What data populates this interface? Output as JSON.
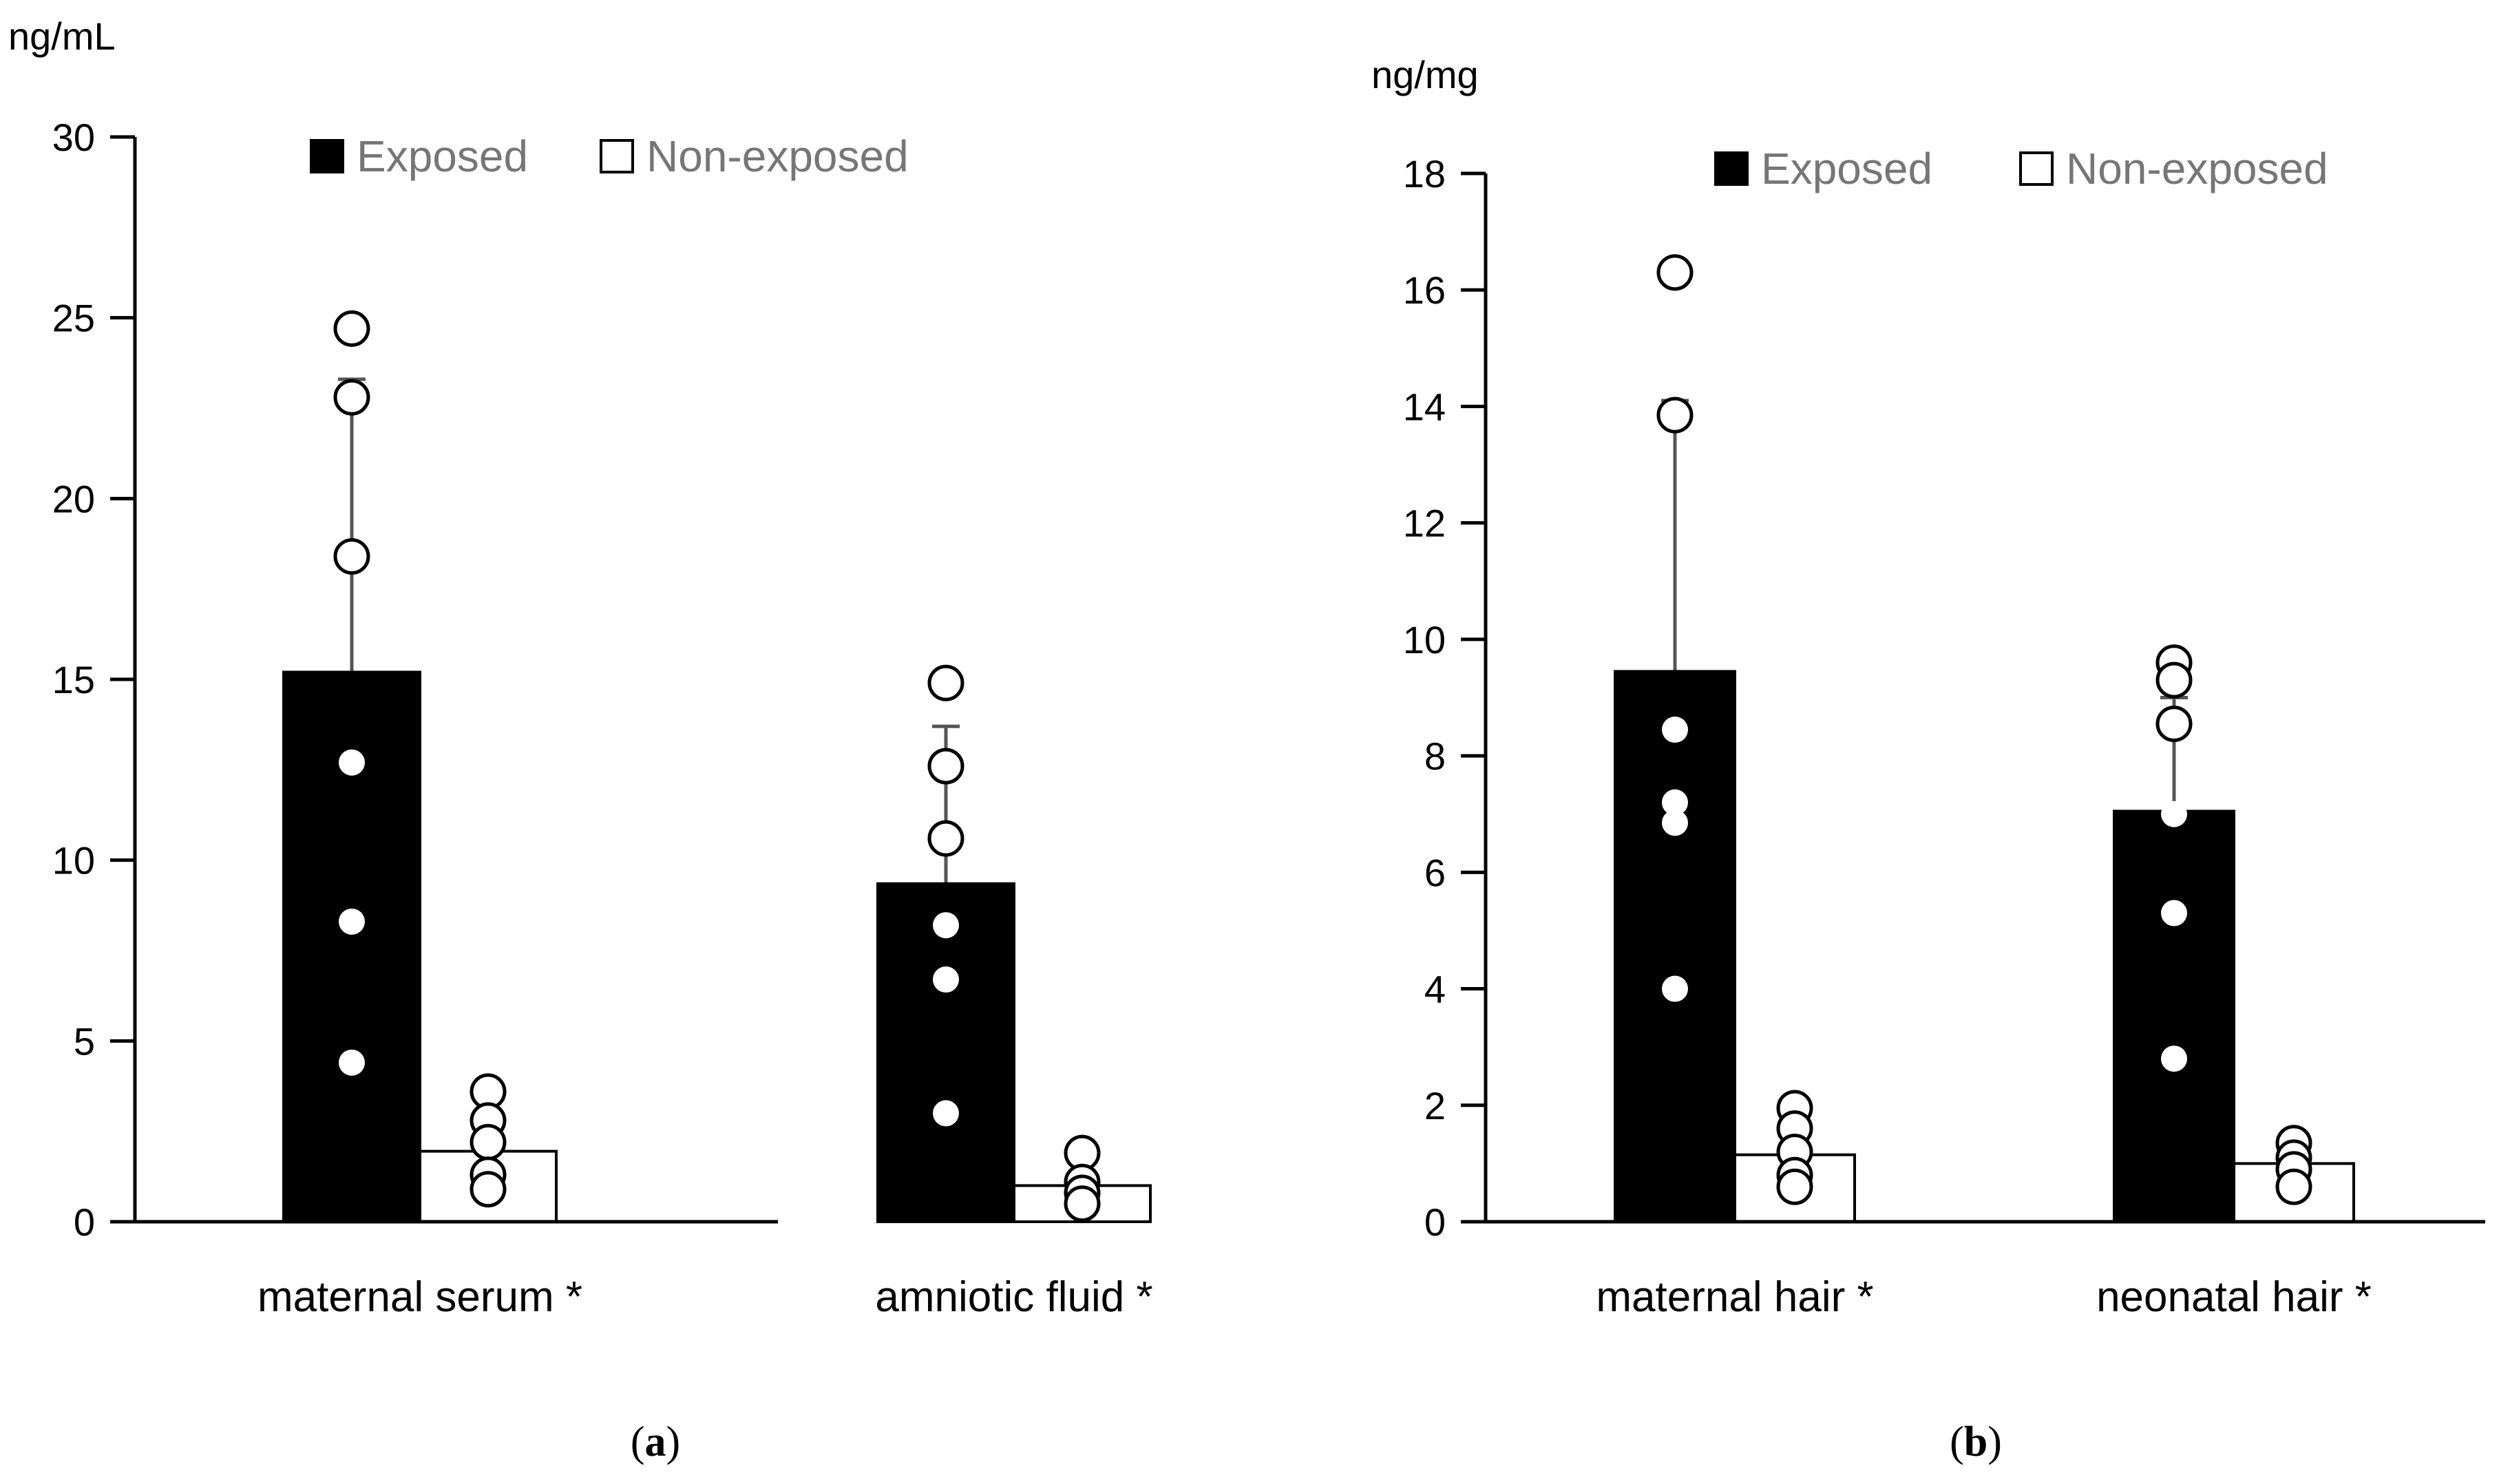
{
  "chart_data": [
    {
      "type": "bar",
      "panel_label": "(a)",
      "panel_letter": "a",
      "ylabel": "ng/mL",
      "ylim": [
        0,
        30
      ],
      "yticks": [
        0,
        5,
        10,
        15,
        20,
        25,
        30
      ],
      "categories": [
        "maternal serum *",
        "amniotic fluid *"
      ],
      "legend": {
        "position": "top-center",
        "entries": [
          "Exposed",
          "Non-exposed"
        ]
      },
      "series": [
        {
          "name": "Exposed",
          "color": "#000000",
          "values": [
            15.2,
            9.35
          ],
          "error_upper": [
            23.3,
            13.7
          ],
          "points": [
            [
              24.7,
              22.8,
              18.4,
              12.7,
              8.3,
              4.4
            ],
            [
              14.9,
              12.6,
              10.6,
              8.2,
              6.7,
              3.0
            ]
          ]
        },
        {
          "name": "Non-exposed",
          "color": "#ffffff",
          "values": [
            1.95,
            1.0
          ],
          "error_upper": [
            null,
            null
          ],
          "points": [
            [
              3.6,
              2.8,
              2.2,
              1.3,
              0.9
            ],
            [
              1.9,
              1.1,
              0.8,
              0.5
            ]
          ]
        }
      ]
    },
    {
      "type": "bar",
      "panel_label": "(b)",
      "panel_letter": "b",
      "ylabel": "ng/mg",
      "ylim": [
        0,
        18
      ],
      "yticks": [
        0,
        2,
        4,
        6,
        8,
        10,
        12,
        14,
        16,
        18
      ],
      "categories": [
        "maternal hair *",
        "neonatal hair *"
      ],
      "legend": {
        "position": "top-center",
        "entries": [
          "Exposed",
          "Non-exposed"
        ]
      },
      "series": [
        {
          "name": "Exposed",
          "color": "#000000",
          "values": [
            9.45,
            7.05
          ],
          "error_upper": [
            14.1,
            9.0
          ],
          "points": [
            [
              16.3,
              13.85,
              8.45,
              7.2,
              6.85,
              4.0
            ],
            [
              9.6,
              9.3,
              8.55,
              7.0,
              5.3,
              2.8
            ]
          ]
        },
        {
          "name": "Non-exposed",
          "color": "#ffffff",
          "values": [
            1.15,
            1.0
          ],
          "error_upper": [
            null,
            null
          ],
          "points": [
            [
              1.95,
              1.6,
              1.2,
              0.8,
              0.6
            ],
            [
              1.35,
              1.1,
              0.9,
              0.6
            ]
          ]
        }
      ]
    }
  ]
}
